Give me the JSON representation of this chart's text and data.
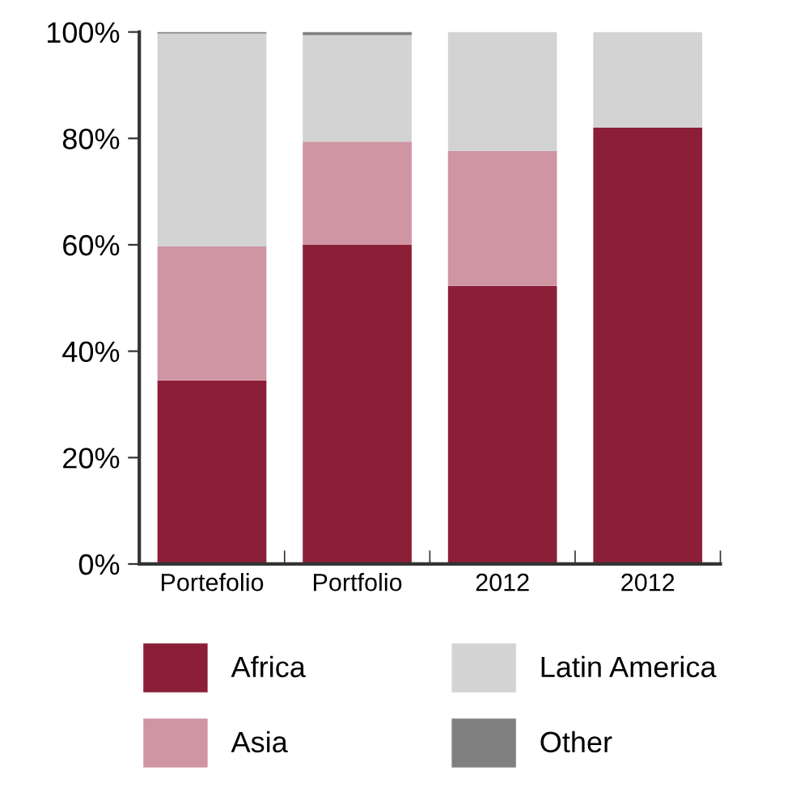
{
  "chart_data": {
    "type": "bar",
    "stacked": true,
    "categories": [
      "Portefolio",
      "Portfolio",
      "2012",
      "2012"
    ],
    "series": [
      {
        "name": "Africa",
        "color": "#8c1f38",
        "values": [
          34.5,
          60,
          52.3,
          82
        ]
      },
      {
        "name": "Asia",
        "color": "#cf95a3",
        "values": [
          25.2,
          19.4,
          25.3,
          null
        ]
      },
      {
        "name": "Latin America",
        "color": "#d3d3d3",
        "values": [
          40,
          20,
          22.4,
          18
        ]
      },
      {
        "name": "Other",
        "color": "#808080",
        "values": [
          0.3,
          0.6,
          null,
          null
        ]
      }
    ],
    "ylim": [
      0,
      100
    ],
    "yticks": [
      {
        "value": 0,
        "label": "0%"
      },
      {
        "value": 20,
        "label": "20%"
      },
      {
        "value": 40,
        "label": "40%"
      },
      {
        "value": 60,
        "label": "60%"
      },
      {
        "value": 80,
        "label": "80%"
      },
      {
        "value": 100,
        "label": "100%"
      }
    ],
    "grid": false,
    "legend": "bottom"
  }
}
